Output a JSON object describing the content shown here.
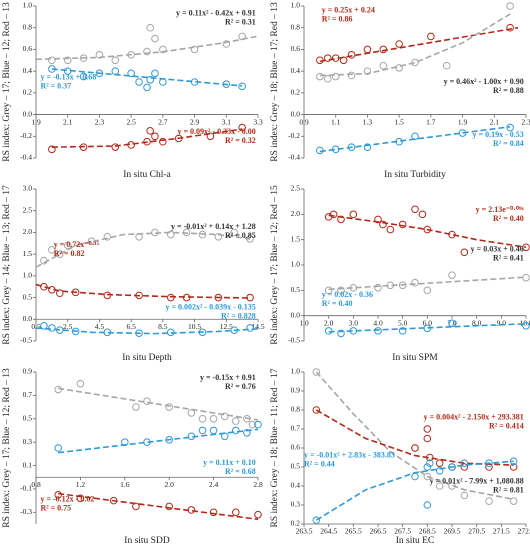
{
  "chart_data": [
    {
      "type": "scatter",
      "x_label": "In situ Chl-a",
      "y_label": "RS index: Grey – 17; Blue – 12; Red – 13",
      "xlim": [
        1.9,
        3.3
      ],
      "xticks": [
        1.9,
        2.1,
        2.3,
        2.5,
        2.7,
        2.9,
        3.1,
        3.3
      ],
      "ylim": [
        -0.4,
        1.0
      ],
      "yticks": [
        -0.4,
        -0.2,
        {
          "value": 0,
          "label": "0.0"
        },
        0.2,
        0.4,
        0.6,
        0.8,
        {
          "value": 1,
          "label": "1.0"
        }
      ],
      "series": [
        {
          "color": "#a6a6a6",
          "text_color": "#333333",
          "x": [
            2.0,
            2.1,
            2.2,
            2.3,
            2.4,
            2.5,
            2.6,
            2.62,
            2.65,
            2.7,
            2.9,
            3.1,
            3.2
          ],
          "values": [
            0.5,
            0.5,
            0.52,
            0.55,
            0.5,
            0.55,
            0.58,
            0.8,
            0.7,
            0.6,
            0.6,
            0.65,
            0.72
          ],
          "trend": {
            "x": [
              1.9,
              2.3,
              2.7,
              3.1,
              3.3
            ],
            "y": [
              0.509,
              0.526,
              0.578,
              0.665,
              0.722
            ]
          },
          "equation": [
            "y = 0.11x² - 0.42x + 0.91",
            "R² = 0.31"
          ]
        },
        {
          "color": "#2e9ad6",
          "text_color": "#2e9ad6",
          "x": [
            2.0,
            2.1,
            2.2,
            2.3,
            2.4,
            2.5,
            2.55,
            2.6,
            2.62,
            2.65,
            2.7,
            2.9,
            3.1,
            3.2
          ],
          "values": [
            0.42,
            0.4,
            0.35,
            0.38,
            0.4,
            0.38,
            0.3,
            0.25,
            0.32,
            0.38,
            0.3,
            0.3,
            0.28,
            0.26
          ],
          "trend": {
            "x": [
              2.0,
              3.2
            ],
            "y": [
              0.42,
              0.264
            ]
          },
          "equation": [
            "y = -0.13x + 0.68",
            "R² = 0.37"
          ]
        },
        {
          "color": "#b22a1a",
          "text_color": "#b22a1a",
          "x": [
            2.0,
            2.2,
            2.4,
            2.5,
            2.6,
            2.62,
            2.65,
            2.7,
            2.8,
            3.0,
            3.2
          ],
          "values": [
            -0.32,
            -0.3,
            -0.3,
            -0.28,
            -0.25,
            -0.15,
            -0.2,
            -0.25,
            -0.22,
            -0.2,
            -0.12
          ],
          "trend": {
            "x": [
              2.0,
              2.4,
              2.8,
              3.2
            ],
            "y": [
              -0.3,
              -0.29,
              -0.218,
              -0.134
            ]
          },
          "equation": [
            "y = 0.09x² - 0.33x - 0.00",
            "R² = 0.32"
          ]
        }
      ]
    },
    {
      "type": "scatter",
      "x_label": "In situ Turbidity",
      "y_label": "RS index: Grey – 18; Blue – 17; Red – 13",
      "xlim": [
        0.9,
        2.3
      ],
      "xticks": [
        0.9,
        1.1,
        1.3,
        1.5,
        1.7,
        1.9,
        2.1,
        2.3
      ],
      "ylim": [
        -0.4,
        1.0
      ],
      "yticks": [
        -0.4,
        -0.2,
        {
          "value": 0,
          "label": "0.0"
        },
        0.2,
        0.4,
        0.6,
        0.8,
        {
          "value": 1,
          "label": "1.0"
        }
      ],
      "series": [
        {
          "color": "#b22a1a",
          "text_color": "#b22a1a",
          "x": [
            1.0,
            1.05,
            1.1,
            1.15,
            1.2,
            1.3,
            1.4,
            1.5,
            1.7,
            2.2
          ],
          "values": [
            0.5,
            0.52,
            0.52,
            0.5,
            0.55,
            0.6,
            0.6,
            0.65,
            0.72,
            0.8
          ],
          "trend": {
            "x": [
              1.0,
              2.25
            ],
            "y": [
              0.49,
              0.8
            ]
          },
          "equation": [
            "y = 0.25x + 0.24",
            "R² = 0.86"
          ]
        },
        {
          "color": "#a6a6a6",
          "text_color": "#333333",
          "x": [
            1.0,
            1.05,
            1.1,
            1.2,
            1.3,
            1.4,
            1.5,
            1.6,
            1.8,
            2.2
          ],
          "values": [
            0.35,
            0.33,
            0.35,
            0.36,
            0.4,
            0.45,
            0.43,
            0.48,
            0.45,
            1.0
          ],
          "trend": {
            "x": [
              1.0,
              1.3,
              1.6,
              1.9,
              2.2
            ],
            "y": [
              0.36,
              0.377,
              0.478,
              0.661,
              0.926
            ]
          },
          "equation": [
            "y = 0.46x² - 1.00x + 0.90",
            "R² = 0.88"
          ]
        },
        {
          "color": "#2e9ad6",
          "text_color": "#2e9ad6",
          "x": [
            1.0,
            1.1,
            1.2,
            1.3,
            1.5,
            1.6,
            1.9,
            2.2
          ],
          "values": [
            -0.33,
            -0.32,
            -0.3,
            -0.3,
            -0.25,
            -0.2,
            -0.17,
            -0.12
          ],
          "trend": {
            "x": [
              1.0,
              2.2
            ],
            "y": [
              -0.34,
              -0.112
            ]
          },
          "equation": [
            "y = 0.19x - 0.53",
            "R² = 0.84"
          ]
        }
      ]
    },
    {
      "type": "scatter",
      "x_label": "In situ Depth",
      "y_label": "RS index: Grey – 14; Blue – 13; Red – 17",
      "xlim": [
        0.5,
        14.5
      ],
      "xticks": [
        0.5,
        2.5,
        4.5,
        6.5,
        8.5,
        10.5,
        12.5,
        14.5
      ],
      "ylim": [
        -0.5,
        3.0
      ],
      "yticks": [
        -0.5,
        {
          "value": 0,
          "label": "0.0"
        },
        0.5,
        {
          "value": 1,
          "label": "1.0"
        },
        1.5,
        {
          "value": 2,
          "label": "2.0"
        },
        2.5,
        {
          "value": 3,
          "label": "3.0"
        }
      ],
      "series": [
        {
          "color": "#a6a6a6",
          "text_color": "#333333",
          "x": [
            1,
            1.5,
            2,
            2.5,
            4,
            5,
            7,
            8,
            9,
            10,
            11,
            12,
            13,
            14
          ],
          "values": [
            1.35,
            1.6,
            1.5,
            1.7,
            1.8,
            1.9,
            1.9,
            2.0,
            1.95,
            2.0,
            1.95,
            1.9,
            2.0,
            1.85
          ],
          "trend": {
            "x": [
              0.5,
              3,
              6,
              9,
              12,
              14
            ],
            "y": [
              1.2,
              1.7,
              1.95,
              2.0,
              1.95,
              1.85
            ]
          },
          "equation": [
            "y = -0.01x² + 0.14x + 1.28",
            "R² = 0.85"
          ]
        },
        {
          "color": "#b22a1a",
          "text_color": "#b22a1a",
          "x": [
            1,
            1.5,
            2,
            3,
            5,
            7,
            9,
            10,
            12,
            14
          ],
          "values": [
            0.75,
            0.68,
            0.6,
            0.62,
            0.55,
            0.55,
            0.5,
            0.5,
            0.5,
            0.5
          ],
          "trend": {
            "x": [
              0.5,
              2,
              5,
              9,
              14
            ],
            "y": [
              0.8,
              0.65,
              0.57,
              0.52,
              0.49
            ]
          },
          "equation": [
            "y = 0.72x⁻⁰·¹⁵",
            "R² = 0.82"
          ]
        },
        {
          "color": "#2e9ad6",
          "text_color": "#2e9ad6",
          "x": [
            1,
            1.5,
            2,
            3,
            5,
            7,
            9,
            11,
            13,
            14
          ],
          "values": [
            -0.15,
            -0.2,
            -0.25,
            -0.28,
            -0.3,
            -0.32,
            -0.3,
            -0.3,
            -0.25,
            -0.2
          ],
          "trend": {
            "x": [
              0.5,
              4,
              8,
              12,
              14.5
            ],
            "y": [
              -0.2,
              -0.3,
              -0.33,
              -0.28,
              -0.22
            ]
          },
          "equation": [
            "y = 0.002x² - 0.039x - 0.135",
            "R² = 0.828"
          ]
        }
      ]
    },
    {
      "type": "scatter",
      "x_label": "In situ SPM",
      "y_label": "RS index: Grey – 17; Blue – 12; Red – 15",
      "xlim": [
        1.0,
        10.0
      ],
      "xticks": [
        {
          "value": 1,
          "label": "1.0"
        },
        {
          "value": 2,
          "label": "2.0"
        },
        {
          "value": 3,
          "label": "3.0"
        },
        {
          "value": 4,
          "label": "4.0"
        },
        {
          "value": 5,
          "label": "5.0"
        },
        {
          "value": 6,
          "label": "6.0"
        },
        {
          "value": 7,
          "label": "7.0"
        },
        {
          "value": 8,
          "label": "8.0"
        },
        {
          "value": 9,
          "label": "9.0"
        },
        {
          "value": 10,
          "label": "10.0"
        }
      ],
      "ylim": [
        -0.5,
        2.5
      ],
      "yticks": [
        -0.5,
        {
          "value": 0,
          "label": "0.0"
        },
        0.5,
        {
          "value": 1,
          "label": "1.0"
        },
        1.5,
        {
          "value": 2,
          "label": "2.0"
        },
        2.5
      ],
      "series": [
        {
          "color": "#b22a1a",
          "text_color": "#b22a1a",
          "x": [
            2,
            2.2,
            2.5,
            3,
            4,
            4.2,
            4.5,
            5,
            5.5,
            5.8,
            6,
            7,
            7.5,
            10
          ],
          "values": [
            1.95,
            2.0,
            1.9,
            2.0,
            1.9,
            1.8,
            1.7,
            1.8,
            2.1,
            2.0,
            1.7,
            1.6,
            1.25,
            1.35
          ],
          "trend": {
            "x": [
              2,
              4,
              6,
              8,
              10
            ],
            "y": [
              1.98,
              1.85,
              1.7,
              1.5,
              1.35
            ]
          },
          "equation": [
            "y = 2.13e⁻⁰·⁰⁹ˣ",
            "R² = 0.40"
          ]
        },
        {
          "color": "#a6a6a6",
          "text_color": "#333333",
          "x": [
            2,
            2.5,
            3,
            4,
            4.5,
            5,
            5.5,
            6,
            7,
            10
          ],
          "values": [
            0.5,
            0.5,
            0.55,
            0.55,
            0.6,
            0.6,
            0.65,
            0.5,
            0.8,
            0.75
          ],
          "trend": {
            "x": [
              2,
              10
            ],
            "y": [
              0.52,
              0.76
            ]
          },
          "equation": [
            "y = 0.03x + 0.46",
            "R² = 0.41"
          ]
        },
        {
          "color": "#2e9ad6",
          "text_color": "#2e9ad6",
          "x": [
            2,
            2.5,
            3,
            4,
            5,
            6,
            7,
            10
          ],
          "values": [
            -0.3,
            -0.35,
            -0.3,
            -0.3,
            -0.3,
            -0.25,
            -0.15,
            -0.2
          ],
          "trend": {
            "x": [
              2,
              10
            ],
            "y": [
              -0.32,
              -0.16
            ]
          },
          "equation": [
            "y = 0.02x - 0.36",
            "R² = 0.40"
          ]
        }
      ]
    },
    {
      "type": "scatter",
      "x_label": "In situ SDD",
      "y_label": "RS index: Grey – 17; Blue – 12; Red – 13",
      "xlim": [
        0.8,
        2.8
      ],
      "xticks": [
        0.8,
        1.2,
        1.6,
        {
          "value": 2,
          "label": "2.0"
        },
        2.4,
        2.8
      ],
      "ylim": [
        -0.4,
        0.9
      ],
      "yticks": [
        -0.3,
        -0.1,
        0.1,
        0.3,
        0.5,
        0.7,
        0.9
      ],
      "series": [
        {
          "color": "#a6a6a6",
          "text_color": "#333333",
          "x": [
            1.0,
            1.2,
            1.7,
            1.8,
            2.0,
            2.2,
            2.3,
            2.4,
            2.5,
            2.6,
            2.7,
            2.75
          ],
          "values": [
            0.75,
            0.8,
            0.6,
            0.65,
            0.6,
            0.55,
            0.5,
            0.5,
            0.52,
            0.48,
            0.5,
            0.45
          ],
          "trend": {
            "x": [
              1.0,
              2.8
            ],
            "y": [
              0.76,
              0.49
            ]
          },
          "equation": [
            "y = -0.15x + 0.91",
            "R² = 0.76"
          ]
        },
        {
          "color": "#2e9ad6",
          "text_color": "#2e9ad6",
          "x": [
            1.0,
            1.6,
            1.8,
            2.0,
            2.2,
            2.3,
            2.4,
            2.5,
            2.6,
            2.7,
            2.8
          ],
          "values": [
            0.25,
            0.3,
            0.3,
            0.32,
            0.35,
            0.4,
            0.4,
            0.35,
            0.4,
            0.38,
            0.45
          ],
          "trend": {
            "x": [
              1.0,
              2.8
            ],
            "y": [
              0.21,
              0.41
            ]
          },
          "equation": [
            "y = 0.11x + 0.10",
            "R² = 0.68"
          ]
        },
        {
          "color": "#b22a1a",
          "text_color": "#b22a1a",
          "x": [
            1.0,
            1.2,
            1.5,
            1.7,
            2.0,
            2.2,
            2.4,
            2.6,
            2.8
          ],
          "values": [
            -0.15,
            -0.18,
            -0.2,
            -0.25,
            -0.25,
            -0.28,
            -0.3,
            -0.3,
            -0.32
          ],
          "trend": {
            "x": [
              1.0,
              2.8
            ],
            "y": [
              -0.14,
              -0.36
            ]
          },
          "equation": [
            "y = -0.12x - 0.02",
            "R² = 0.75"
          ]
        }
      ]
    },
    {
      "type": "scatter",
      "x_label": "In situ EC",
      "y_label": "RS index: Grey – 18; Blue – 11; Red – 17",
      "xlim": [
        263.5,
        272.5
      ],
      "xticks": [
        263.5,
        264.5,
        265.5,
        266.5,
        267.5,
        268.5,
        269.5,
        270.5,
        271.5,
        272.5
      ],
      "ylim": [
        0.2,
        1.0
      ],
      "yticks": [
        0.2,
        0.3,
        0.4,
        0.5,
        0.6,
        0.7,
        0.8,
        0.9,
        {
          "value": 1,
          "label": "1.0"
        }
      ],
      "series": [
        {
          "color": "#a6a6a6",
          "text_color": "#333333",
          "x": [
            264,
            268,
            268.5,
            269,
            269.5,
            270,
            271,
            272
          ],
          "values": [
            1.0,
            0.6,
            0.45,
            0.4,
            0.4,
            0.35,
            0.32,
            0.32
          ],
          "trend": {
            "x": [
              264,
              265.5,
              267,
              268.5,
              270,
              272
            ],
            "y": [
              1.0,
              0.78,
              0.58,
              0.45,
              0.38,
              0.33
            ]
          },
          "equation": [
            "y = 0.01x² - 7.99x + 1,080.88",
            "R² = 0.81"
          ]
        },
        {
          "color": "#b22a1a",
          "text_color": "#b22a1a",
          "x": [
            264,
            268,
            268.5,
            268.5,
            268.6,
            269,
            269.5,
            270,
            271,
            272
          ],
          "values": [
            0.8,
            0.6,
            0.7,
            0.65,
            0.55,
            0.52,
            0.5,
            0.5,
            0.5,
            0.5
          ],
          "trend": {
            "x": [
              264,
              266,
              268,
              270,
              272
            ],
            "y": [
              0.8,
              0.65,
              0.56,
              0.52,
              0.51
            ]
          },
          "equation": [
            "y = 0.004x² - 2.150x + 293.381",
            "R² = 0.414"
          ]
        },
        {
          "color": "#2e9ad6",
          "text_color": "#2e9ad6",
          "x": [
            264,
            268,
            268.5,
            268.5,
            268.6,
            269,
            269.5,
            270,
            271,
            272
          ],
          "values": [
            0.22,
            0.45,
            0.5,
            0.3,
            0.52,
            0.48,
            0.5,
            0.52,
            0.52,
            0.53
          ],
          "trend": {
            "x": [
              264,
              266,
              268,
              270,
              272
            ],
            "y": [
              0.22,
              0.38,
              0.47,
              0.51,
              0.53
            ]
          },
          "equation": [
            "y = -0.01x² + 2.83x - 383.83",
            "R² = 0.44"
          ]
        }
      ]
    }
  ]
}
